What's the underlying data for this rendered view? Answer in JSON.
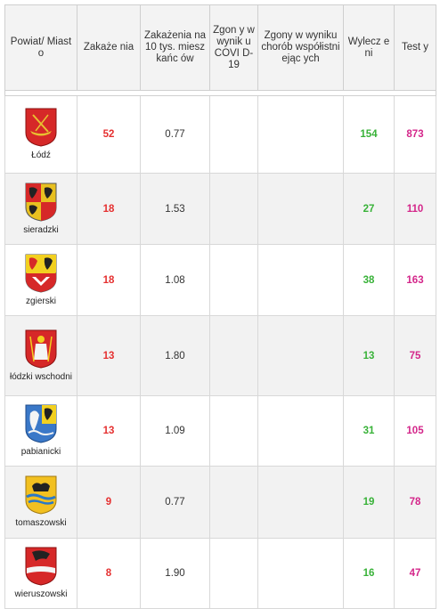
{
  "header": {
    "col_powiat": "Powiat/ Miasto",
    "col_zakazenia": "Zakaże nia",
    "col_na10tys": "Zakażenia na 10 tys. mieszkańc ów",
    "col_zgony_covid": "Zgon y w wynik u COVI D-19",
    "col_zgony_wsp": "Zgony w wyniku chorób współistniejąc ych",
    "col_wyleczeni": "Wylecz eni",
    "col_testy": "Test y"
  },
  "rows": [
    {
      "name": "Łódź",
      "zakazenia": "52",
      "na10tys": "0.77",
      "zgony_covid": "",
      "zgony_wsp": "",
      "wyleczeni": "154",
      "testy": "873",
      "crest_icon": "lodz-coat-of-arms-icon"
    },
    {
      "name": "sieradzki",
      "zakazenia": "18",
      "na10tys": "1.53",
      "zgony_covid": "",
      "zgony_wsp": "",
      "wyleczeni": "27",
      "testy": "110",
      "crest_icon": "sieradzki-coat-of-arms-icon"
    },
    {
      "name": "zgierski",
      "zakazenia": "18",
      "na10tys": "1.08",
      "zgony_covid": "",
      "zgony_wsp": "",
      "wyleczeni": "38",
      "testy": "163",
      "crest_icon": "zgierski-coat-of-arms-icon"
    },
    {
      "name": "łódzki wschodni",
      "zakazenia": "13",
      "na10tys": "1.80",
      "zgony_covid": "",
      "zgony_wsp": "",
      "wyleczeni": "13",
      "testy": "75",
      "crest_icon": "lodzki-wschodni-coat-of-arms-icon"
    },
    {
      "name": "pabianicki",
      "zakazenia": "13",
      "na10tys": "1.09",
      "zgony_covid": "",
      "zgony_wsp": "",
      "wyleczeni": "31",
      "testy": "105",
      "crest_icon": "pabianicki-coat-of-arms-icon"
    },
    {
      "name": "tomaszowski",
      "zakazenia": "9",
      "na10tys": "0.77",
      "zgony_covid": "",
      "zgony_wsp": "",
      "wyleczeni": "19",
      "testy": "78",
      "crest_icon": "tomaszowski-coat-of-arms-icon"
    },
    {
      "name": "wieruszowski",
      "zakazenia": "8",
      "na10tys": "1.90",
      "zgony_covid": "",
      "zgony_wsp": "",
      "wyleczeni": "16",
      "testy": "47",
      "crest_icon": "wieruszowski-coat-of-arms-icon"
    }
  ],
  "colors": {
    "zakazenia": "#e53030",
    "wyleczeni": "#38b238",
    "testy": "#d4268a"
  }
}
